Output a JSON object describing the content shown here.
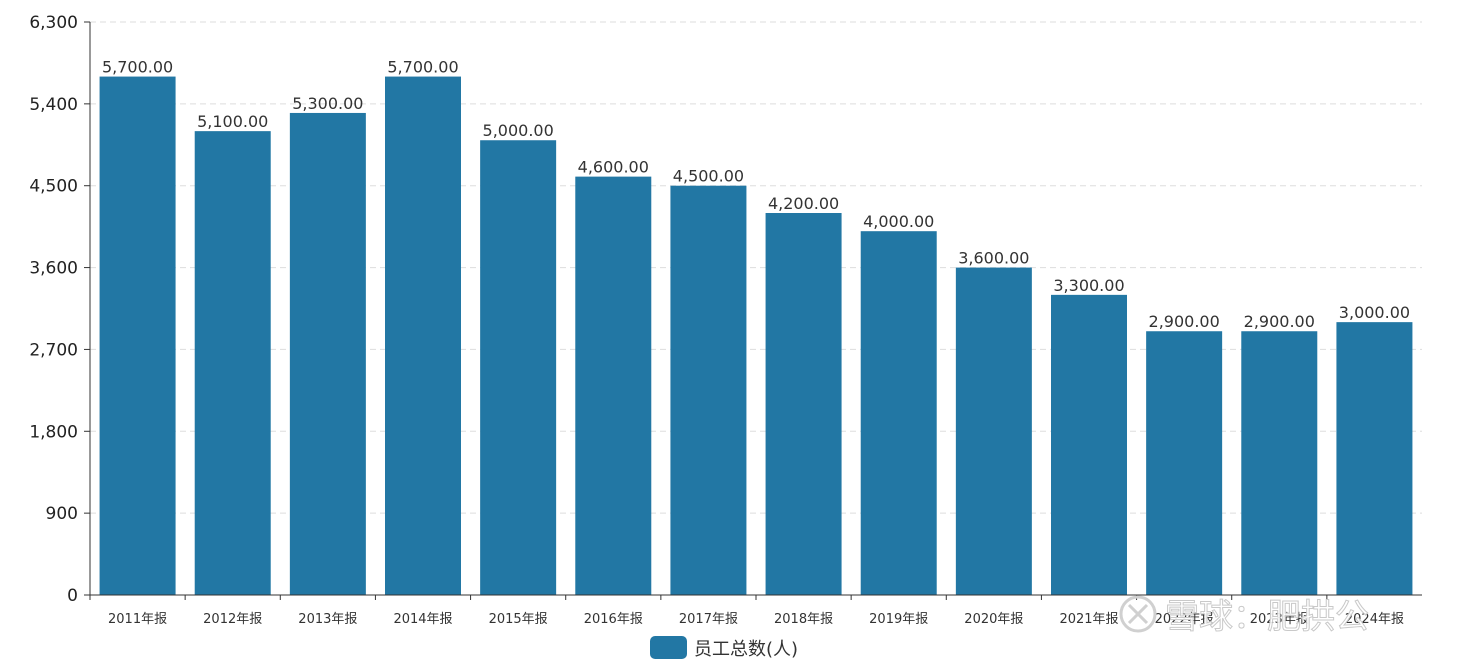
{
  "chart_data": {
    "type": "bar",
    "categories": [
      "2011年报",
      "2012年报",
      "2013年报",
      "2014年报",
      "2015年报",
      "2016年报",
      "2017年报",
      "2018年报",
      "2019年报",
      "2020年报",
      "2021年报",
      "2022年报",
      "2023年报",
      "2024年报"
    ],
    "series": [
      {
        "name": "员工总数(人)",
        "color": "#2277a4",
        "values": [
          5700,
          5100,
          5300,
          5700,
          5000,
          4600,
          4500,
          4200,
          4000,
          3600,
          3300,
          2900,
          2900,
          3000
        ],
        "labels": [
          "5,700.00",
          "5,100.00",
          "5,300.00",
          "5,700.00",
          "5,000.00",
          "4,600.00",
          "4,500.00",
          "4,200.00",
          "4,000.00",
          "3,600.00",
          "3,300.00",
          "2,900.00",
          "2,900.00",
          "3,000.00"
        ]
      }
    ],
    "yticks": [
      0,
      900,
      1800,
      2700,
      3600,
      4500,
      5400,
      6300
    ],
    "ytick_labels": [
      "0",
      "900",
      "1,800",
      "2,700",
      "3,600",
      "4,500",
      "5,400",
      "6,300"
    ],
    "ylim": [
      0,
      6300
    ],
    "grid": true,
    "legend": "bottom-center"
  },
  "watermark": {
    "text": "雪球：肥拱公",
    "icon": "snowball-logo-icon"
  }
}
